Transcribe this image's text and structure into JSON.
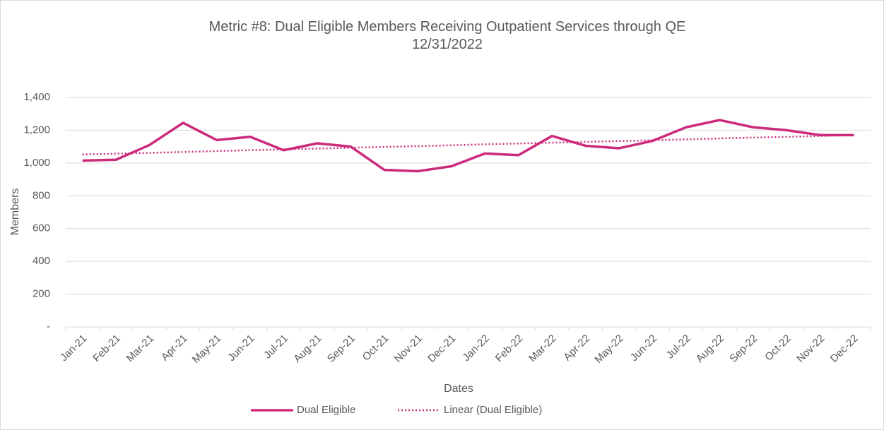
{
  "chart_data": {
    "type": "line",
    "title": "Metric #8: Dual Eligible Members Receiving Outpatient Services through QE 12/31/2022",
    "x_label": "Dates",
    "y_label": "Members",
    "categories": [
      "Jan-21",
      "Feb-21",
      "Mar-21",
      "Apr-21",
      "May-21",
      "Jun-21",
      "Jul-21",
      "Aug-21",
      "Sep-21",
      "Oct-21",
      "Nov-21",
      "Dec-21",
      "Jan-22",
      "Feb-22",
      "Mar-22",
      "Apr-22",
      "May-22",
      "Jun-22",
      "Jul-22",
      "Aug-22",
      "Sep-22",
      "Oct-22",
      "Nov-22",
      "Dec-22"
    ],
    "series": [
      {
        "name": "Dual Eligible",
        "color": "#cc2a7b",
        "dash": false,
        "values": [
          1015,
          1020,
          1110,
          1245,
          1140,
          1160,
          1078,
          1120,
          1100,
          958,
          950,
          980,
          1058,
          1048,
          1165,
          1105,
          1090,
          1135,
          1218,
          1262,
          1218,
          1200,
          1170,
          1170
        ]
      },
      {
        "name": "Linear (Dual Eligible)",
        "color": "#cc2a7b",
        "dash": true,
        "values": [
          1052,
          1057,
          1062,
          1067,
          1073,
          1078,
          1083,
          1088,
          1093,
          1098,
          1103,
          1108,
          1114,
          1119,
          1124,
          1129,
          1134,
          1139,
          1144,
          1150,
          1155,
          1160,
          1165,
          1170
        ]
      }
    ],
    "ylim": [
      0,
      1400
    ],
    "yticks": [
      {
        "value": 0,
        "label": "-"
      },
      200,
      400,
      600,
      800,
      {
        "value": 1000,
        "label": "1,000"
      },
      {
        "value": 1200,
        "label": "1,200"
      },
      {
        "value": 1400,
        "label": "1,400"
      }
    ],
    "grid": true,
    "legend": "bottom"
  }
}
